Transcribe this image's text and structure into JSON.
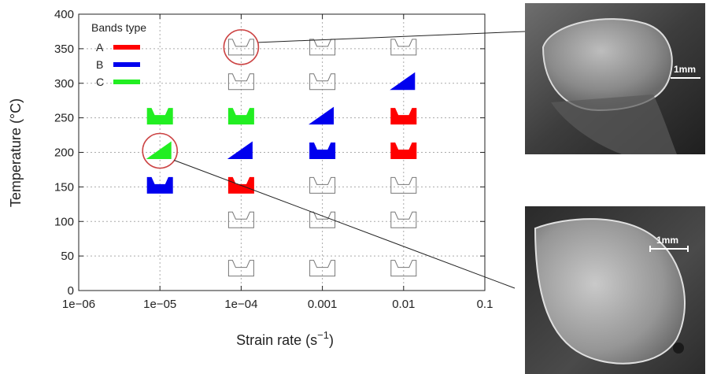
{
  "chart_data": {
    "type": "scatter",
    "xscale": "log",
    "xlabel": "Strain rate (s",
    "xlabel_sup": "−1",
    "xlabel_close": ")",
    "ylabel": "Temperature (°C)",
    "xlim": [
      1e-06,
      0.1
    ],
    "ylim": [
      0,
      400
    ],
    "xticks": [
      1e-06,
      1e-05,
      0.0001,
      0.001,
      0.01,
      0.1
    ],
    "xtick_labels": [
      "1e−06",
      "1e−05",
      "1e−04",
      "0.001",
      "0.01",
      "0.1"
    ],
    "yticks": [
      0,
      50,
      100,
      150,
      200,
      250,
      300,
      350,
      400
    ],
    "grid": true,
    "legend": {
      "title": "Bands type",
      "placement": "top-left",
      "entries": [
        {
          "label": "A",
          "color": "#ff0000"
        },
        {
          "label": "B",
          "color": "#0000ee"
        },
        {
          "label": "C",
          "color": "#22ee22"
        }
      ]
    },
    "points": [
      {
        "x": 1e-05,
        "y": 250,
        "shape": "cup",
        "band": "C"
      },
      {
        "x": 1e-05,
        "y": 200,
        "shape": "slant",
        "band": "C",
        "circled": true
      },
      {
        "x": 1e-05,
        "y": 150,
        "shape": "cup",
        "band": "B"
      },
      {
        "x": 0.0001,
        "y": 350,
        "shape": "cup",
        "band": "none",
        "circled": true
      },
      {
        "x": 0.0001,
        "y": 300,
        "shape": "cup",
        "band": "none"
      },
      {
        "x": 0.0001,
        "y": 250,
        "shape": "cup",
        "band": "C"
      },
      {
        "x": 0.0001,
        "y": 200,
        "shape": "slant",
        "band": "B"
      },
      {
        "x": 0.0001,
        "y": 150,
        "shape": "cup",
        "band": "A"
      },
      {
        "x": 0.0001,
        "y": 100,
        "shape": "cup",
        "band": "none"
      },
      {
        "x": 0.0001,
        "y": 30,
        "shape": "cup",
        "band": "none"
      },
      {
        "x": 0.001,
        "y": 350,
        "shape": "cup",
        "band": "none"
      },
      {
        "x": 0.001,
        "y": 300,
        "shape": "cup",
        "band": "none"
      },
      {
        "x": 0.001,
        "y": 250,
        "shape": "slant",
        "band": "B"
      },
      {
        "x": 0.001,
        "y": 200,
        "shape": "cup",
        "band": "B"
      },
      {
        "x": 0.001,
        "y": 150,
        "shape": "cup",
        "band": "none"
      },
      {
        "x": 0.001,
        "y": 100,
        "shape": "cup",
        "band": "none"
      },
      {
        "x": 0.001,
        "y": 30,
        "shape": "cup",
        "band": "none"
      },
      {
        "x": 0.01,
        "y": 350,
        "shape": "cup",
        "band": "none"
      },
      {
        "x": 0.01,
        "y": 300,
        "shape": "slant",
        "band": "B"
      },
      {
        "x": 0.01,
        "y": 250,
        "shape": "cup",
        "band": "A"
      },
      {
        "x": 0.01,
        "y": 200,
        "shape": "cup",
        "band": "A"
      },
      {
        "x": 0.01,
        "y": 150,
        "shape": "cup",
        "band": "none"
      },
      {
        "x": 0.01,
        "y": 100,
        "shape": "cup",
        "band": "none"
      },
      {
        "x": 0.01,
        "y": 30,
        "shape": "cup",
        "band": "none"
      }
    ],
    "photos": [
      {
        "scale_label": "1mm",
        "linked_point": {
          "x": 0.0001,
          "y": 350
        }
      },
      {
        "scale_label": "1mm",
        "linked_point": {
          "x": 1e-05,
          "y": 200
        }
      }
    ]
  }
}
